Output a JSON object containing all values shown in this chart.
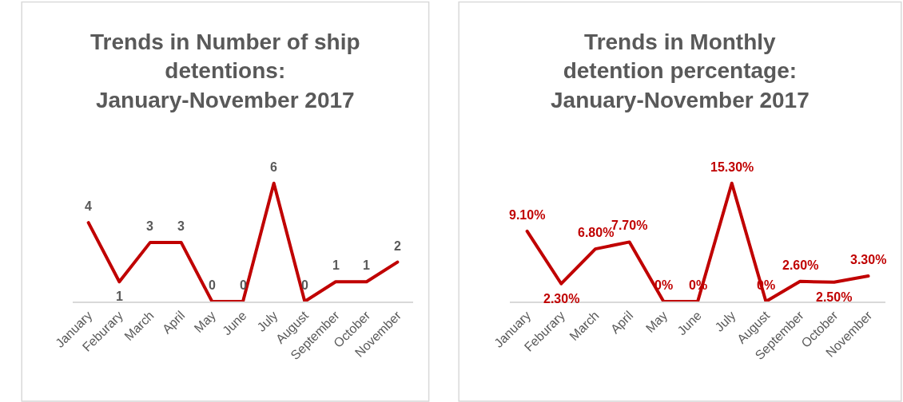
{
  "chart_data": [
    {
      "type": "line",
      "title": "Trends in Number of ship detentions: January-November 2017",
      "categories": [
        "January",
        "Feburary",
        "March",
        "April",
        "May",
        "June",
        "July",
        "August",
        "September",
        "October",
        "November"
      ],
      "series": [
        {
          "color": "#c00000",
          "values": [
            4,
            1,
            3,
            3,
            0,
            0,
            6,
            0,
            1,
            1,
            2
          ]
        }
      ],
      "data_labels": true,
      "legend": false,
      "tick_labels": "x",
      "marker": "none",
      "line_style": "solid"
    },
    {
      "type": "line",
      "title": "Trends in Monthly detention percentage: January-November 2017",
      "categories": [
        "January",
        "Feburary",
        "March",
        "April",
        "May",
        "June",
        "July",
        "August",
        "September",
        "October",
        "November"
      ],
      "series": [
        {
          "color": "#c00000",
          "values": [
            9.1,
            2.3,
            6.8,
            7.7,
            0,
            0,
            15.3,
            0,
            2.6,
            2.5,
            3.3
          ],
          "value_labels": [
            "9.10%",
            "2.30%",
            "6.80%",
            "7.70%",
            "0%",
            "0%",
            "15.30%",
            "0%",
            "2.60%",
            "2.50%",
            "3.30%"
          ]
        }
      ],
      "legend": false,
      "tick_labels": "x",
      "marker": "none",
      "line_style": "solid"
    }
  ]
}
